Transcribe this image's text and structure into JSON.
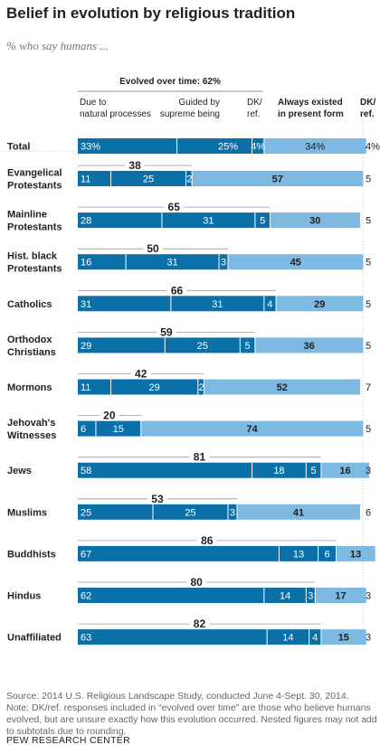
{
  "title": "Belief in evolution by religious tradition",
  "subtitle": "% who say humans ...",
  "headers": {
    "evolved": "Evolved over time: 62%",
    "natural": [
      "Due to",
      "natural processes"
    ],
    "guided": [
      "Guided by",
      "supreme being"
    ],
    "dk1": [
      "DK/",
      "ref."
    ],
    "always": [
      "Always existed",
      "in present form"
    ],
    "dk2": [
      "DK/",
      "ref."
    ]
  },
  "colors": {
    "evolved": "#0b6fa8",
    "always": "#7db9e1",
    "divider": "#ffffff",
    "axis": "#999999"
  },
  "chart_data": {
    "type": "bar",
    "stacked": true,
    "series": [
      {
        "name": "Due to natural processes",
        "color": "#0b6fa8"
      },
      {
        "name": "Guided by supreme being",
        "color": "#0b6fa8"
      },
      {
        "name": "DK/ref.",
        "color": "#0b6fa8"
      },
      {
        "name": "Always existed in present form",
        "color": "#7db9e1"
      },
      {
        "name": "DK/ref.",
        "color": "#ffffff"
      }
    ],
    "rows": [
      {
        "label": [
          "Total"
        ],
        "natural": 33,
        "guided": 25,
        "dk1": 4,
        "always": 34,
        "dk2": 4,
        "labels": [
          "33%",
          "25%",
          "4%",
          "34%",
          "4%"
        ],
        "total": null
      },
      {
        "label": [
          "Evangelical",
          "Protestants"
        ],
        "natural": 11,
        "guided": 25,
        "dk1": 2,
        "always": 57,
        "dk2": 5,
        "labels": [
          "11",
          "25",
          "2",
          "57",
          "5"
        ],
        "total": "38"
      },
      {
        "label": [
          "Mainline",
          "Protestants"
        ],
        "natural": 28,
        "guided": 31,
        "dk1": 5,
        "always": 30,
        "dk2": 5,
        "labels": [
          "28",
          "31",
          "5",
          "30",
          "5"
        ],
        "total": "65"
      },
      {
        "label": [
          "Hist. black",
          "Protestants"
        ],
        "natural": 16,
        "guided": 31,
        "dk1": 3,
        "always": 45,
        "dk2": 5,
        "labels": [
          "16",
          "31",
          "3",
          "45",
          "5"
        ],
        "total": "50"
      },
      {
        "label": [
          "Catholics"
        ],
        "natural": 31,
        "guided": 31,
        "dk1": 4,
        "always": 29,
        "dk2": 5,
        "labels": [
          "31",
          "31",
          "4",
          "29",
          "5"
        ],
        "total": "66"
      },
      {
        "label": [
          "Orthodox",
          "Christians"
        ],
        "natural": 29,
        "guided": 25,
        "dk1": 5,
        "always": 36,
        "dk2": 5,
        "labels": [
          "29",
          "25",
          "5",
          "36",
          "5"
        ],
        "total": "59"
      },
      {
        "label": [
          "Mormons"
        ],
        "natural": 11,
        "guided": 29,
        "dk1": 2,
        "always": 52,
        "dk2": 7,
        "labels": [
          "11",
          "29",
          "2",
          "52",
          "7"
        ],
        "total": "42"
      },
      {
        "label": [
          "Jehovah's",
          "Witnesses"
        ],
        "natural": 6,
        "guided": 15,
        "dk1": 0,
        "always": 74,
        "dk2": 5,
        "labels": [
          "6",
          "15",
          "",
          "74",
          "5"
        ],
        "total": "20"
      },
      {
        "label": [
          "Jews"
        ],
        "natural": 58,
        "guided": 18,
        "dk1": 5,
        "always": 16,
        "dk2": 3,
        "labels": [
          "58",
          "18",
          "5",
          "16",
          "3"
        ],
        "total": "81"
      },
      {
        "label": [
          "Muslims"
        ],
        "natural": 25,
        "guided": 25,
        "dk1": 3,
        "always": 41,
        "dk2": 6,
        "labels": [
          "25",
          "25",
          "3",
          "41",
          "6"
        ],
        "total": "53"
      },
      {
        "label": [
          "Buddhists"
        ],
        "natural": 67,
        "guided": 13,
        "dk1": 6,
        "always": 13,
        "dk2": 0,
        "labels": [
          "67",
          "13",
          "6",
          "13",
          ""
        ],
        "total": "86"
      },
      {
        "label": [
          "Hindus"
        ],
        "natural": 62,
        "guided": 14,
        "dk1": 3,
        "always": 17,
        "dk2": 3,
        "labels": [
          "62",
          "14",
          "3",
          "17",
          "3"
        ],
        "total": "80"
      },
      {
        "label": [
          "Unaffiliated"
        ],
        "natural": 63,
        "guided": 14,
        "dk1": 4,
        "always": 15,
        "dk2": 3,
        "labels": [
          "63",
          "14",
          "4",
          "15",
          "3"
        ],
        "total": "82"
      }
    ]
  },
  "footer": {
    "source": "Source: 2014 U.S. Religious Landscape Study, conducted June 4-Sept. 30, 2014.",
    "note": "Note: DK/ref. responses included in “evolved over time” are those who believe humans evolved, but are unsure exactly how this evolution occurred. Nested figures may not add to subtotals due to rounding.",
    "brand": "PEW RESEARCH CENTER"
  }
}
